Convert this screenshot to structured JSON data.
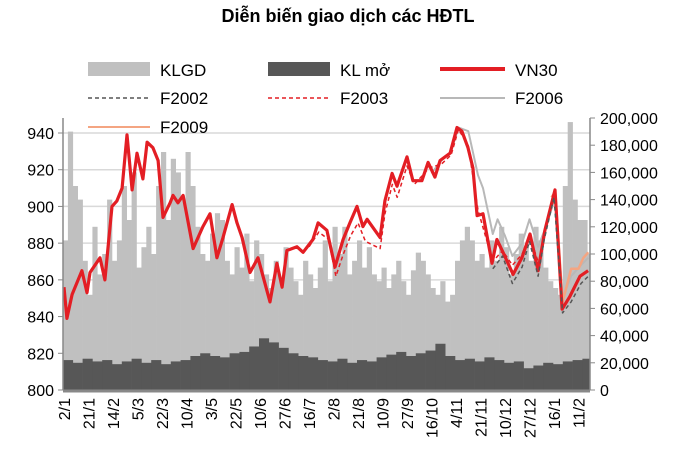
{
  "chart_data": {
    "type": "bar+line",
    "title": "Diễn biến giao dịch các HĐTL",
    "legend_position": "top",
    "legend": {
      "klgd": "KLGD",
      "klmo": "KL mở",
      "vn30": "VN30",
      "f2002": "F2002",
      "f2003": "F2003",
      "f2006": "F2006",
      "f2009": "F2009"
    },
    "colors": {
      "klgd": "#c0c0c0",
      "klmo": "#575757",
      "vn30": "#e31e24",
      "f2002": "#555555",
      "f2003": "#e31e24",
      "f2006": "#b8b8b8",
      "f2009": "#f4a582"
    },
    "x_ticks": [
      "2/1",
      "21/1",
      "14/2",
      "5/3",
      "22/3",
      "10/4",
      "3/5",
      "22/5",
      "10/6",
      "27/6",
      "16/7",
      "2/8",
      "21/8",
      "10/9",
      "27/9",
      "16/10",
      "4/11",
      "21/11",
      "10/12",
      "27/12",
      "16/1",
      "11/2"
    ],
    "x_range": [
      0,
      21.5
    ],
    "y_left": {
      "range": [
        800,
        940
      ],
      "ticks": [
        "800",
        "820",
        "840",
        "860",
        "880",
        "900",
        "920",
        "940"
      ]
    },
    "y_right": {
      "range": [
        0,
        200000
      ],
      "ticks": [
        "0",
        "20,000",
        "40,000",
        "60,000",
        "80,000",
        "100,000",
        "120,000",
        "140,000",
        "160,000",
        "180,000",
        "200,000"
      ]
    },
    "grid": true,
    "klgd_step": 0.2,
    "klgd": [
      110000,
      190000,
      150000,
      140000,
      95000,
      70000,
      120000,
      85000,
      100000,
      140000,
      95000,
      110000,
      150000,
      125000,
      160000,
      90000,
      105000,
      120000,
      100000,
      150000,
      175000,
      125000,
      170000,
      160000,
      140000,
      175000,
      150000,
      120000,
      100000,
      95000,
      115000,
      130000,
      125000,
      95000,
      85000,
      105000,
      90000,
      115000,
      80000,
      110000,
      100000,
      85000,
      75000,
      95000,
      80000,
      105000,
      90000,
      80000,
      70000,
      95000,
      85000,
      75000,
      90000,
      110000,
      80000,
      120000,
      100000,
      120000,
      85000,
      95000,
      110000,
      90000,
      105000,
      85000,
      80000,
      90000,
      75000,
      85000,
      95000,
      80000,
      70000,
      88000,
      101000,
      95000,
      85000,
      75000,
      70000,
      80000,
      65000,
      70000,
      95000,
      110000,
      120000,
      110000,
      95000,
      100000,
      90000,
      110000,
      95000,
      120000,
      105000,
      85000,
      100000,
      115000,
      105000,
      95000,
      120000,
      110000,
      90000,
      80000,
      75000,
      70000,
      150000,
      197000,
      140000,
      125000,
      125000,
      100000
    ],
    "klmo_step": 0.4,
    "klmo": [
      22000,
      20000,
      23000,
      21000,
      22000,
      19000,
      21000,
      23000,
      20000,
      22000,
      19000,
      21000,
      22000,
      25000,
      27000,
      25000,
      24000,
      27000,
      28000,
      32000,
      38000,
      35000,
      31000,
      27000,
      25000,
      24000,
      22000,
      21000,
      23000,
      20000,
      22000,
      21000,
      24000,
      26000,
      28000,
      25000,
      27000,
      29000,
      34000,
      25000,
      22000,
      23000,
      21000,
      24000,
      22000,
      20000,
      21000,
      16000,
      18000,
      20000,
      19000,
      21000,
      22000,
      23000,
      22000
    ],
    "vn30": [
      [
        0,
        856
      ],
      [
        0.12,
        839
      ],
      [
        0.33,
        852
      ],
      [
        0.73,
        865
      ],
      [
        0.94,
        853
      ],
      [
        1.06,
        864
      ],
      [
        1.47,
        872
      ],
      [
        1.67,
        860
      ],
      [
        1.96,
        900
      ],
      [
        2.16,
        903
      ],
      [
        2.37,
        910
      ],
      [
        2.57,
        939
      ],
      [
        2.78,
        909
      ],
      [
        2.98,
        929
      ],
      [
        3.22,
        915
      ],
      [
        3.39,
        935
      ],
      [
        3.63,
        932
      ],
      [
        3.84,
        925
      ],
      [
        4.04,
        894
      ],
      [
        4.33,
        902
      ],
      [
        4.45,
        906
      ],
      [
        4.65,
        902
      ],
      [
        4.86,
        906
      ],
      [
        5.27,
        877
      ],
      [
        5.67,
        889
      ],
      [
        5.96,
        896
      ],
      [
        6.24,
        872
      ],
      [
        6.49,
        883
      ],
      [
        6.86,
        901
      ],
      [
        7.06,
        891
      ],
      [
        7.27,
        883
      ],
      [
        7.59,
        864
      ],
      [
        7.92,
        872
      ],
      [
        8.41,
        848
      ],
      [
        8.69,
        869
      ],
      [
        8.9,
        856
      ],
      [
        9.1,
        876
      ],
      [
        9.51,
        878
      ],
      [
        9.76,
        875
      ],
      [
        10.16,
        882
      ],
      [
        10.37,
        891
      ],
      [
        10.73,
        887
      ],
      [
        11.06,
        867
      ],
      [
        11.39,
        882
      ],
      [
        11.67,
        891
      ],
      [
        11.96,
        900
      ],
      [
        12.2,
        889
      ],
      [
        12.37,
        893
      ],
      [
        12.9,
        883
      ],
      [
        13.1,
        903
      ],
      [
        13.39,
        918
      ],
      [
        13.59,
        911
      ],
      [
        14.0,
        927
      ],
      [
        14.24,
        914
      ],
      [
        14.61,
        914
      ],
      [
        14.86,
        924
      ],
      [
        15.14,
        916
      ],
      [
        15.35,
        925
      ],
      [
        15.76,
        929
      ],
      [
        16.04,
        943
      ],
      [
        16.24,
        941
      ],
      [
        16.49,
        932
      ],
      [
        16.69,
        921
      ],
      [
        16.86,
        895
      ],
      [
        17.1,
        896
      ],
      [
        17.47,
        869
      ],
      [
        17.67,
        882
      ],
      [
        17.92,
        875
      ],
      [
        18.33,
        863
      ],
      [
        18.69,
        872
      ],
      [
        19.02,
        885
      ],
      [
        19.35,
        865
      ],
      [
        19.63,
        887
      ],
      [
        20.04,
        909
      ],
      [
        20.33,
        844
      ],
      [
        20.65,
        851
      ],
      [
        21.06,
        862
      ],
      [
        21.39,
        865
      ]
    ],
    "f2002": [
      [
        17.5,
        866
      ],
      [
        17.9,
        873
      ],
      [
        18.3,
        858
      ],
      [
        18.7,
        867
      ],
      [
        19.0,
        881
      ],
      [
        19.35,
        862
      ],
      [
        19.6,
        882
      ],
      [
        20.0,
        905
      ],
      [
        20.35,
        842
      ],
      [
        20.7,
        848
      ],
      [
        21.1,
        858
      ],
      [
        21.4,
        862
      ]
    ],
    "f2003": [
      [
        10.0,
        878
      ],
      [
        10.4,
        886
      ],
      [
        10.8,
        882
      ],
      [
        11.1,
        862
      ],
      [
        11.4,
        874
      ],
      [
        11.7,
        884
      ],
      [
        12.0,
        891
      ],
      [
        12.3,
        881
      ],
      [
        12.9,
        877
      ],
      [
        13.1,
        896
      ],
      [
        13.4,
        912
      ],
      [
        13.6,
        905
      ],
      [
        14.0,
        922
      ],
      [
        14.3,
        912
      ],
      [
        14.9,
        921
      ],
      [
        15.4,
        923
      ],
      [
        15.8,
        928
      ],
      [
        16.1,
        942
      ],
      [
        16.5,
        933
      ],
      [
        16.9,
        898
      ],
      [
        17.5,
        870
      ],
      [
        17.9,
        876
      ],
      [
        18.3,
        868
      ],
      [
        18.7,
        874
      ],
      [
        19.0,
        884
      ],
      [
        19.4,
        868
      ],
      [
        19.6,
        886
      ],
      [
        20.0,
        905
      ]
    ],
    "f2006": [
      [
        15.0,
        918
      ],
      [
        15.4,
        925
      ],
      [
        15.8,
        930
      ],
      [
        16.1,
        943
      ],
      [
        16.5,
        941
      ],
      [
        16.9,
        917
      ],
      [
        17.1,
        910
      ],
      [
        17.5,
        885
      ],
      [
        17.7,
        893
      ],
      [
        18.0,
        884
      ],
      [
        18.3,
        873
      ],
      [
        18.7,
        880
      ],
      [
        19.0,
        893
      ],
      [
        19.35,
        878
      ],
      [
        19.7,
        890
      ],
      [
        20.05,
        905
      ],
      [
        20.35,
        850
      ],
      [
        20.7,
        862
      ],
      [
        21.1,
        868
      ],
      [
        21.4,
        872
      ]
    ],
    "f2009": [
      [
        19.9,
        905
      ],
      [
        20.05,
        908
      ],
      [
        20.35,
        848
      ],
      [
        20.7,
        866
      ],
      [
        21.0,
        866
      ],
      [
        21.2,
        872
      ],
      [
        21.4,
        875
      ]
    ]
  }
}
